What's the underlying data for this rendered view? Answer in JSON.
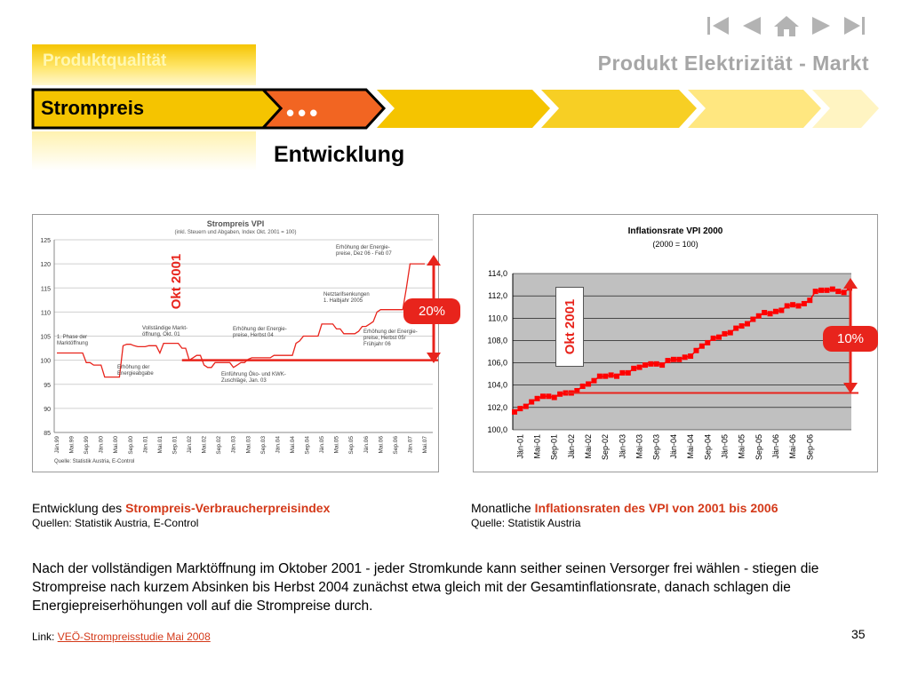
{
  "nav": {
    "icons": [
      "first-icon",
      "prev-icon",
      "home-icon",
      "next-icon",
      "last-icon"
    ]
  },
  "header": {
    "section_tab": "Produktqualität",
    "subtitle": "Produkt Elektrizität - Markt",
    "current_tab": "Strompreis",
    "ellipsis": "•••",
    "title": "Entwicklung"
  },
  "colors": {
    "accent_yellow": "#f5c400",
    "active_orange": "#f26522",
    "highlight_red": "#e8241c",
    "caption_red": "#d43a1a"
  },
  "left_chart": {
    "okt_label": "Okt 2001",
    "badge": "20%",
    "annotations": {
      "a1": "1. Phase der\nMarktöffnung",
      "a2": "Erhöhung der\nEnergieabgabe",
      "a3": "Vollständige Markt-\nöffnung, Okt. 01",
      "a4": "Erhöhung der Energie-\npreise, Herbst 04",
      "a5": "Einführung Öko- und KWK-\nZuschläge, Jan. 03",
      "a6": "Netztarifsenkungen\n1. Halbjahr 2005",
      "a7": "Erhöhung der Energie-\npreise, Dez 06 - Feb 07",
      "a8": "Erhöhung der Energie-\npreise, Herbst 05/\nFrühjahr 06"
    },
    "caption_prefix": "Entwicklung des ",
    "caption_highlight": "Strompreis-Verbraucherpreisindex",
    "caption_source": "Quellen: Statistik Austria, E-Control"
  },
  "right_chart": {
    "okt_label": "Okt 2001",
    "badge": "10%",
    "caption_prefix": "Monatliche ",
    "caption_highlight": "Inflationsraten des VPI von 2001 bis 2006",
    "caption_source": "Quelle: Statistik Austria"
  },
  "chart_data": [
    {
      "type": "line",
      "title": "Strompreis VPI",
      "subtitle": "(inkl. Steuern und Abgaben, Index Okt. 2001 = 100)",
      "source": "Quelle: Statistik Austria, E-Control",
      "ylim": [
        85,
        125
      ],
      "yticks": [
        85,
        90,
        95,
        100,
        105,
        110,
        115,
        120,
        125
      ],
      "grid": true,
      "xticks": [
        "Jän.99",
        "Mai.99",
        "Sep.99",
        "Jän.00",
        "Mai.00",
        "Sep.00",
        "Jän.01",
        "Mai.01",
        "Sep.01",
        "Jän.02",
        "Mai.02",
        "Sep.02",
        "Jän.03",
        "Mai.03",
        "Sep.03",
        "Jän.04",
        "Mai.04",
        "Sep.04",
        "Jän.05",
        "Mai.05",
        "Sep.05",
        "Jän.06",
        "Mai.06",
        "Sep.06",
        "Jän.07",
        "Mai.07"
      ],
      "series": [
        {
          "values": [
            101.5,
            101.5,
            101.5,
            101.5,
            101.5,
            101.5,
            101.5,
            101.5,
            99.5,
            99.5,
            99,
            99,
            99,
            96.5,
            96.5,
            96.5,
            96.5,
            96.5,
            103,
            103.3,
            103.3,
            103,
            102.8,
            102.8,
            102.8,
            103,
            103,
            103,
            101.5,
            103.5,
            103.5,
            103.5,
            103.5,
            103.5,
            102.5,
            102.5,
            100,
            100.5,
            101,
            101,
            99,
            98.5,
            98.5,
            99.5,
            99.5,
            99.5,
            99.5,
            99.5,
            98.5,
            99,
            99.5,
            99.5,
            100.2,
            100.5,
            100.5,
            100.5,
            100.5,
            100.5,
            100.5,
            101,
            101,
            101,
            101,
            101,
            101,
            103.5,
            104,
            105,
            105,
            105,
            105,
            105,
            107.5,
            107.5,
            107.5,
            107.5,
            106.5,
            106.5,
            105.5,
            105.5,
            105.5,
            105.5,
            106,
            107,
            107,
            107.5,
            108,
            110,
            110.5,
            110.5,
            110.5,
            110.5,
            110.5,
            110.5,
            110.5,
            115,
            120,
            120,
            120,
            120,
            120
          ]
        }
      ],
      "reference_line": 100
    },
    {
      "type": "line",
      "title": "Inflationsrate VPI 2000",
      "subtitle": "(2000 = 100)",
      "ylim": [
        100,
        114
      ],
      "yticks": [
        "100,0",
        "102,0",
        "104,0",
        "106,0",
        "108,0",
        "110,0",
        "112,0",
        "114,0"
      ],
      "grid": true,
      "xticks": [
        "Jän-01",
        "Mai-01",
        "Sep-01",
        "Jän-02",
        "Mai-02",
        "Sep-02",
        "Jän-03",
        "Mai-03",
        "Sep-03",
        "Jän-04",
        "Mai-04",
        "Sep-04",
        "Jän-05",
        "Mai-05",
        "Sep-05",
        "Jän-06",
        "Mai-06",
        "Sep-06"
      ],
      "series": [
        {
          "values": [
            101.6,
            101.9,
            102.1,
            102.5,
            102.8,
            103.0,
            103.0,
            102.9,
            103.2,
            103.3,
            103.3,
            103.5,
            103.9,
            104.1,
            104.4,
            104.8,
            104.8,
            104.9,
            104.8,
            105.1,
            105.1,
            105.5,
            105.6,
            105.8,
            105.9,
            105.9,
            105.8,
            106.2,
            106.3,
            106.3,
            106.5,
            106.6,
            107.1,
            107.5,
            107.8,
            108.2,
            108.3,
            108.6,
            108.7,
            109.1,
            109.3,
            109.5,
            109.9,
            110.2,
            110.5,
            110.4,
            110.6,
            110.7,
            111.1,
            111.2,
            111.1,
            111.3,
            111.6,
            112.4,
            112.5,
            112.5,
            112.6,
            112.4,
            112.3,
            112.7
          ]
        }
      ],
      "reference_line": 103.3
    }
  ],
  "body_text": "Nach der vollständigen Marktöffnung im Oktober 2001 - jeder Stromkunde kann seither seinen Versorger frei wählen - stiegen die Strompreise nach kurzem Absinken bis Herbst 2004 zunächst etwa gleich mit der Gesamtinflationsrate, danach schlagen die Energiepreiserhöhungen voll auf die Strompreise durch.",
  "footer": {
    "link_label": "Link: ",
    "link_text": "VEÖ-Strompreisstudie Mai 2008",
    "page_number": "35"
  }
}
